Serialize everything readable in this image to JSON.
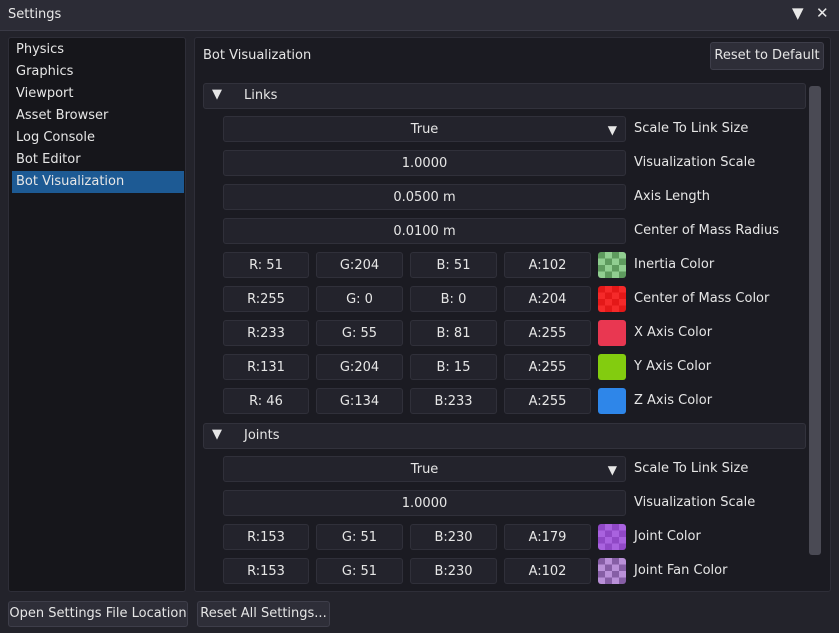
{
  "window": {
    "title": "Settings",
    "dropdown_glyph": "▼",
    "close_glyph": "✕"
  },
  "sidebar": {
    "items": [
      {
        "label": "Physics",
        "active": false
      },
      {
        "label": "Graphics",
        "active": false
      },
      {
        "label": "Viewport",
        "active": false
      },
      {
        "label": "Asset Browser",
        "active": false
      },
      {
        "label": "Log Console",
        "active": false
      },
      {
        "label": "Bot Editor",
        "active": false
      },
      {
        "label": "Bot Visualization",
        "active": true
      }
    ]
  },
  "main": {
    "title": "Bot Visualization",
    "reset_default": "Reset to Default",
    "collapse_glyph": "▼",
    "links": {
      "header": "Links",
      "scale_to_link_size": {
        "value": "True",
        "label": "Scale To Link Size"
      },
      "visualization_scale": {
        "value": "1.0000",
        "label": "Visualization Scale"
      },
      "axis_length": {
        "value": "0.0500 m",
        "label": "Axis Length"
      },
      "com_radius": {
        "value": "0.0100 m",
        "label": "Center of Mass Radius"
      },
      "colors": [
        {
          "label": "Inertia Color",
          "r": "R: 51",
          "g": "G:204",
          "b": "B: 51",
          "a": "A:102",
          "swatch": "#33cc33",
          "alpha": 0.4
        },
        {
          "label": "Center of Mass Color",
          "r": "R:255",
          "g": "G:  0",
          "b": "B:  0",
          "a": "A:204",
          "swatch": "#ff0000",
          "alpha": 0.8
        },
        {
          "label": "X Axis Color",
          "r": "R:233",
          "g": "G: 55",
          "b": "B: 81",
          "a": "A:255",
          "swatch": "#e93751",
          "alpha": 1.0
        },
        {
          "label": "Y Axis Color",
          "r": "R:131",
          "g": "G:204",
          "b": "B: 15",
          "a": "A:255",
          "swatch": "#83cc0f",
          "alpha": 1.0
        },
        {
          "label": "Z Axis Color",
          "r": "R: 46",
          "g": "G:134",
          "b": "B:233",
          "a": "A:255",
          "swatch": "#2e86e9",
          "alpha": 1.0
        }
      ]
    },
    "joints": {
      "header": "Joints",
      "scale_to_link_size": {
        "value": "True",
        "label": "Scale To Link Size"
      },
      "visualization_scale": {
        "value": "1.0000",
        "label": "Visualization Scale"
      },
      "colors": [
        {
          "label": "Joint Color",
          "r": "R:153",
          "g": "G: 51",
          "b": "B:230",
          "a": "A:179",
          "swatch": "#9933e6",
          "alpha": 0.7
        },
        {
          "label": "Joint Fan Color",
          "r": "R:153",
          "g": "G: 51",
          "b": "B:230",
          "a": "A:102",
          "swatch": "#9933e6",
          "alpha": 0.4
        }
      ]
    }
  },
  "footer": {
    "open_settings": "Open Settings File Location",
    "reset_all": "Reset All Settings..."
  }
}
